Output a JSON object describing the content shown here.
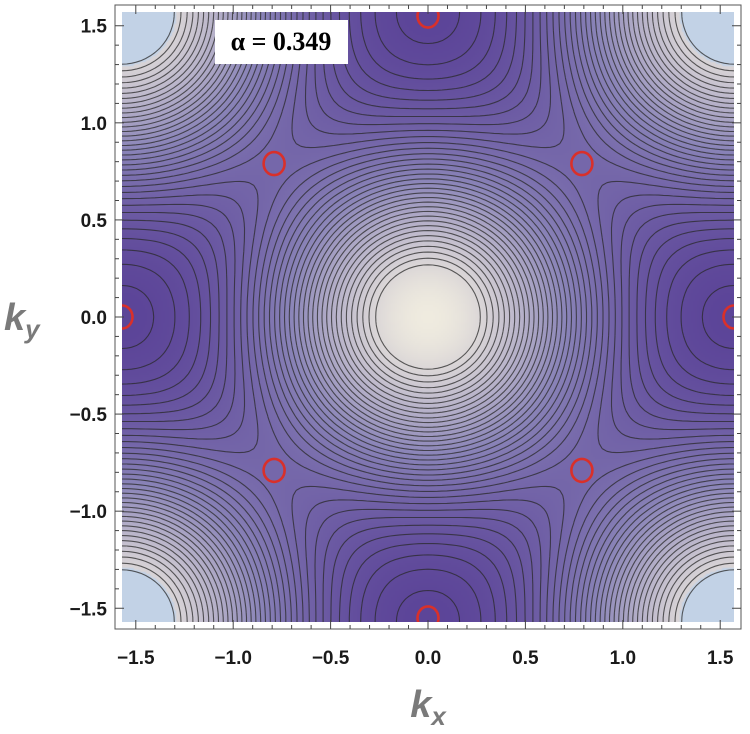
{
  "chart_data": {
    "type": "contour",
    "title": "",
    "xlabel": "k",
    "xlabel_sub": "x",
    "ylabel": "k",
    "ylabel_sub": "y",
    "xlim": [
      -1.5708,
      1.5708
    ],
    "ylim": [
      -1.5708,
      1.5708
    ],
    "x_ticks": [
      -1.5,
      -1.0,
      -0.5,
      0.0,
      0.5,
      1.0,
      1.5
    ],
    "y_ticks": [
      -1.5,
      -1.0,
      -0.5,
      0.0,
      0.5,
      1.0,
      1.5
    ],
    "x_tick_labels": [
      "−1.5",
      "−1.0",
      "−0.5",
      "0.0",
      "0.5",
      "1.0",
      "1.5"
    ],
    "y_tick_labels": [
      "−1.5",
      "−1.0",
      "−0.5",
      "0.0",
      "0.5",
      "1.0",
      "1.5"
    ],
    "annotation": "α = 0.349",
    "colors": {
      "center": "#efebdf",
      "valley": "#4a2c8c",
      "corner": "#c2d2e6",
      "contour_line": "#2a2a2a",
      "marker": "#d9302a"
    },
    "markers": {
      "name": "minima",
      "points": [
        {
          "x": 0.0,
          "y": 1.55
        },
        {
          "x": -0.79,
          "y": 0.79
        },
        {
          "x": 0.79,
          "y": 0.79
        },
        {
          "x": -1.5708,
          "y": 0.0
        },
        {
          "x": 1.5708,
          "y": 0.0
        },
        {
          "x": -0.79,
          "y": -0.79
        },
        {
          "x": 0.79,
          "y": -0.79
        },
        {
          "x": 0.0,
          "y": -1.55
        }
      ]
    }
  }
}
